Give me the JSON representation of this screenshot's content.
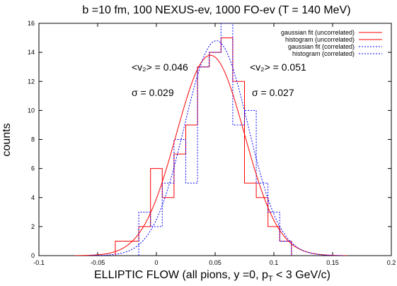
{
  "chart_data": {
    "type": "line",
    "title": "b =10 fm, 100 NEXUS-ev, 1000 FO-ev (T = 140 MeV)",
    "xlabel": "ELLIPTIC FLOW  (all pions, y =0, p",
    "xlabel_sub": "T",
    "xlabel_tail": " < 3 GeV/c)",
    "ylabel": "counts",
    "xlim": [
      -0.1,
      0.2
    ],
    "ylim": [
      0,
      16
    ],
    "x_ticks": [
      -0.1,
      -0.05,
      0,
      0.05,
      0.1,
      0.15,
      0.2
    ],
    "x_tick_labels": [
      "-0.1",
      "-0.05",
      "0",
      "0.05",
      "0.1",
      "0.15",
      "0.2"
    ],
    "y_ticks": [
      0,
      2,
      4,
      6,
      8,
      10,
      12,
      14,
      16
    ],
    "y_tick_labels": [
      "0",
      "2",
      "4",
      "6",
      "8",
      "10",
      "12",
      "14",
      "16"
    ],
    "grid": false,
    "legend_position": "top-right",
    "annotations": {
      "uncorrelated_mean": "<v₂> = 0.046",
      "uncorrelated_sigma": "σ = 0.029",
      "correlated_mean": "<v₂> = 0.051",
      "correlated_sigma": "σ = 0.027"
    },
    "series": [
      {
        "name": "gaussian fit (uncorrelated)",
        "kind": "gaussian",
        "color": "#ff0000",
        "dash": "solid",
        "mean": 0.046,
        "sigma": 0.029,
        "amplitude": 13.8
      },
      {
        "name": "histogram (uncorrelated)",
        "kind": "histogram",
        "color": "#ff0000",
        "dash": "solid",
        "bin_edges": [
          -0.035,
          -0.015,
          -0.005,
          0.005,
          0.015,
          0.025,
          0.035,
          0.045,
          0.055,
          0.065,
          0.075,
          0.085,
          0.095,
          0.105,
          0.115
        ],
        "counts": [
          1,
          2,
          6,
          4,
          7,
          9,
          13,
          14,
          15,
          12,
          5,
          4,
          2,
          1
        ]
      },
      {
        "name": "gaussian fit (correlated)",
        "kind": "gaussian",
        "color": "#0000ff",
        "dash": "dotted",
        "mean": 0.051,
        "sigma": 0.027,
        "amplitude": 14.8
      },
      {
        "name": "histogram (correlated)",
        "kind": "histogram",
        "color": "#0000ff",
        "dash": "dotted",
        "bin_edges": [
          -0.015,
          -0.005,
          0.005,
          0.015,
          0.025,
          0.035,
          0.045,
          0.055,
          0.065,
          0.075,
          0.085,
          0.095,
          0.105,
          0.115
        ],
        "counts": [
          3,
          2,
          5,
          8,
          5,
          13,
          14,
          16,
          9,
          10,
          5,
          3,
          1
        ]
      }
    ]
  }
}
